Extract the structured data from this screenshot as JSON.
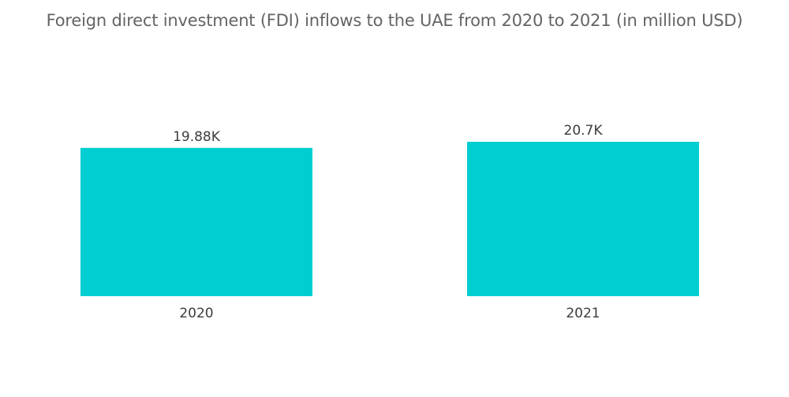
{
  "chart_data": {
    "type": "bar",
    "title": "Foreign direct investment (FDI) inflows to the UAE from 2020 to 2021 (in million USD)",
    "categories": [
      "2020",
      "2021"
    ],
    "values": [
      19880,
      20700
    ],
    "data_labels": [
      "19.88K",
      "20.7K"
    ],
    "xlabel": "",
    "ylabel": "",
    "ylim": [
      0,
      20700
    ],
    "grid": false,
    "legend": "none",
    "colors": {
      "bar": "#00CED1"
    }
  }
}
